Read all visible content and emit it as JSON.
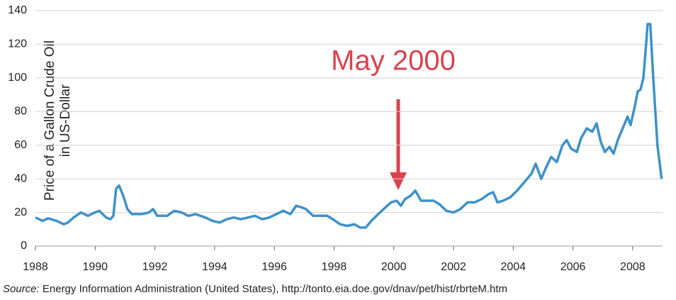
{
  "chart_data": {
    "type": "line",
    "y_label_lines": [
      "Price of a Gallon Crude Oil",
      "in US-Dollar"
    ],
    "annotation": "May 2000",
    "source_label": "Source:",
    "source": "Energy Information Administration (United States), http://tonto.eia.doe.gov/dnav/pet/hist/rbrteM.htm",
    "series": [
      {
        "name": "Crude oil price",
        "color": "#3e91c8",
        "x": [
          1988.0,
          1988.24,
          1988.43,
          1988.71,
          1988.95,
          1989.09,
          1989.28,
          1989.52,
          1989.76,
          1989.99,
          1990.14,
          1990.37,
          1990.51,
          1990.61,
          1990.7,
          1990.8,
          1990.94,
          1991.08,
          1991.23,
          1991.56,
          1991.8,
          1991.94,
          1992.08,
          1992.41,
          1992.65,
          1992.89,
          1993.12,
          1993.36,
          1993.69,
          1993.93,
          1994.17,
          1994.41,
          1994.64,
          1994.88,
          1995.12,
          1995.35,
          1995.59,
          1995.83,
          1996.07,
          1996.3,
          1996.54,
          1996.73,
          1996.92,
          1997.06,
          1997.3,
          1997.54,
          1997.77,
          1997.96,
          1998.2,
          1998.44,
          1998.68,
          1998.87,
          1999.06,
          1999.25,
          1999.48,
          1999.72,
          1999.91,
          2000.1,
          2000.24,
          2000.38,
          2000.57,
          2000.72,
          2000.91,
          2001.14,
          2001.33,
          2001.52,
          2001.76,
          2002.0,
          2002.23,
          2002.47,
          2002.71,
          2002.95,
          2003.18,
          2003.33,
          2003.47,
          2003.66,
          2003.9,
          2004.13,
          2004.37,
          2004.61,
          2004.75,
          2004.94,
          2005.08,
          2005.27,
          2005.46,
          2005.65,
          2005.79,
          2005.94,
          2006.13,
          2006.27,
          2006.46,
          2006.65,
          2006.79,
          2006.93,
          2007.07,
          2007.22,
          2007.36,
          2007.5,
          2007.69,
          2007.83,
          2007.93,
          2008.07,
          2008.17,
          2008.26,
          2008.36,
          2008.45,
          2008.5,
          2008.59,
          2008.69,
          2008.83,
          2008.97
        ],
        "values": [
          17,
          15,
          16.5,
          15,
          13,
          14,
          17,
          20,
          18,
          20,
          21,
          17,
          16,
          18,
          34,
          36,
          30,
          22,
          19,
          19,
          20,
          22,
          18,
          18,
          21,
          20,
          18,
          19,
          17,
          15,
          14,
          16,
          17,
          16,
          17,
          18,
          16,
          17,
          19,
          21,
          19,
          24,
          23,
          22,
          18,
          18,
          18,
          16,
          13,
          12,
          13,
          11,
          11,
          15,
          19,
          23,
          26,
          27,
          24,
          28,
          30,
          33,
          27,
          27,
          27,
          25,
          21,
          20,
          22,
          26,
          26,
          28,
          31,
          32,
          26,
          27,
          29,
          33,
          38,
          43,
          49,
          40,
          46,
          53,
          50,
          60,
          63,
          58,
          56,
          64,
          70,
          68,
          73,
          62,
          56,
          59,
          55,
          63,
          71,
          77,
          72,
          83,
          92,
          93,
          100,
          120,
          132,
          132,
          100,
          60,
          40
        ]
      }
    ],
    "xlim": [
      1988,
      2009
    ],
    "xticks": [
      1988,
      1990,
      1992,
      1994,
      1996,
      1998,
      2000,
      2002,
      2004,
      2006,
      2008
    ],
    "ylim": [
      0,
      140
    ],
    "yticks": [
      0,
      20,
      40,
      60,
      80,
      100,
      120,
      140
    ],
    "grid": true
  }
}
